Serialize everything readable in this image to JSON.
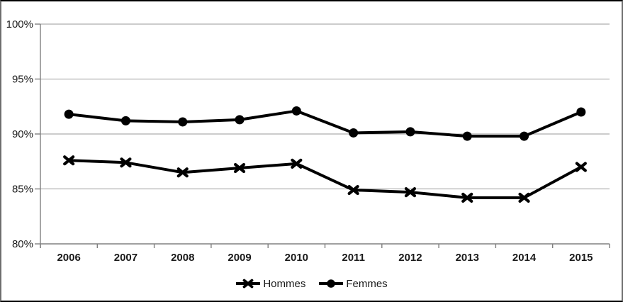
{
  "chart_data": {
    "type": "line",
    "title": "",
    "xlabel": "",
    "ylabel": "",
    "categories": [
      "2006",
      "2007",
      "2008",
      "2009",
      "2010",
      "2011",
      "2012",
      "2013",
      "2014",
      "2015"
    ],
    "series": [
      {
        "name": "Hommes",
        "marker": "x",
        "values": [
          87.6,
          87.4,
          86.5,
          86.9,
          87.3,
          84.9,
          84.7,
          84.2,
          84.2,
          87.0
        ]
      },
      {
        "name": "Femmes",
        "marker": "circle",
        "values": [
          91.8,
          91.2,
          91.1,
          91.3,
          92.1,
          90.1,
          90.2,
          89.8,
          89.8,
          92.0
        ]
      }
    ],
    "ylim": [
      80,
      100
    ],
    "y_tick_values": [
      80,
      85,
      90,
      95,
      100
    ],
    "y_tick_labels": [
      "80%",
      "85%",
      "90%",
      "95%",
      "100%"
    ],
    "grid": true,
    "legend_position": "bottom",
    "colors": {
      "series": "#000000",
      "gridline": "#999999",
      "axis": "#808080",
      "text": "#1a1a1a"
    }
  }
}
